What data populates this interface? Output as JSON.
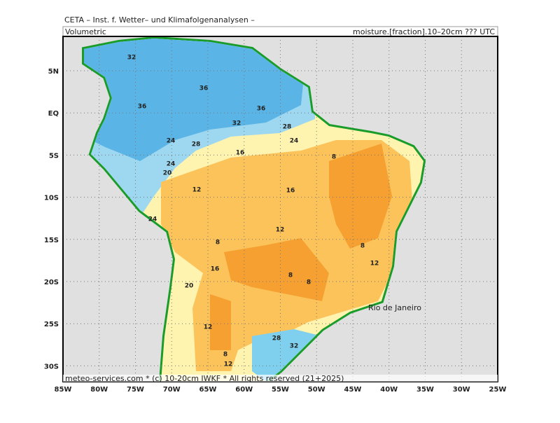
{
  "header": {
    "title": "CETA – Inst. f. Wetter– und Klimafolgenanalysen –",
    "left": "Volumetric",
    "right": "moisture.[fraction].10–20cm ??? UTC"
  },
  "map": {
    "lon_labels": [
      "85W",
      "80W",
      "75W",
      "70W",
      "65W",
      "60W",
      "55W",
      "50W",
      "45W",
      "40W",
      "35W",
      "30W",
      "25W"
    ],
    "lat_labels": [
      "5N",
      "EQ",
      "5S",
      "10S",
      "15S",
      "20S",
      "25S",
      "30S"
    ],
    "contour_labels": [
      "32",
      "36",
      "36",
      "36",
      "32",
      "28",
      "24",
      "28",
      "16",
      "24",
      "8",
      "24",
      "20",
      "12",
      "16",
      "24",
      "12",
      "8",
      "8",
      "16",
      "12",
      "8",
      "8",
      "20",
      "12",
      "28",
      "32",
      "8",
      "12"
    ],
    "city": "Rio de Janeiro"
  },
  "footer": "meteo-services.com * (c) 10-20cm IWKF * All rights reserved (21+2025)"
}
